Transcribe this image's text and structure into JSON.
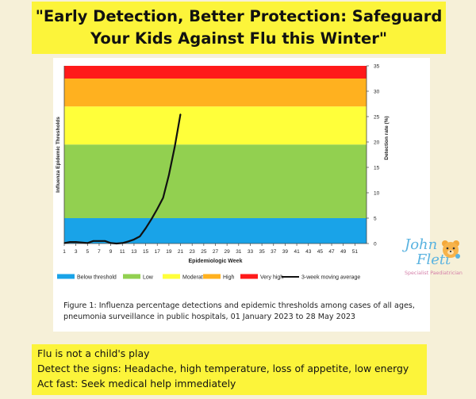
{
  "headline": {
    "line1": "\"Early Detection, Better Protection: Safeguard",
    "line2": "Your Kids Against Flu this Winter\""
  },
  "chart_data": {
    "type": "line",
    "xlabel": "Epidemiologic Week",
    "ylabel_left": "Influenza Epidemic Thresholds",
    "ylabel_right": "Detection rate (%)",
    "xlim": [
      1,
      53
    ],
    "ylim": [
      0,
      35
    ],
    "x_ticks": [
      1,
      3,
      5,
      7,
      9,
      11,
      13,
      15,
      17,
      19,
      21,
      23,
      25,
      27,
      29,
      31,
      33,
      35,
      37,
      39,
      41,
      43,
      45,
      47,
      49,
      51
    ],
    "y_ticks": [
      0,
      5,
      10,
      15,
      20,
      25,
      30,
      35
    ],
    "threshold_bands": [
      {
        "name": "Below threshold",
        "from": 0,
        "to": 5,
        "color": "#19a3e8"
      },
      {
        "name": "Low",
        "from": 5,
        "to": 19.5,
        "color": "#92d050"
      },
      {
        "name": "Moderate",
        "from": 19.5,
        "to": 27,
        "color": "#ffff3a"
      },
      {
        "name": "High",
        "from": 27,
        "to": 32.5,
        "color": "#ffb11f"
      },
      {
        "name": "Very high",
        "from": 32.5,
        "to": 35,
        "color": "#ff1a1a"
      }
    ],
    "series": [
      {
        "name": "3-week moving average",
        "color": "#111111",
        "x": [
          1,
          2,
          3,
          4,
          5,
          6,
          7,
          8,
          9,
          10,
          11,
          12,
          13,
          14,
          15,
          16,
          17,
          18,
          19,
          20,
          21
        ],
        "values": [
          0.1,
          0.3,
          0.3,
          0.2,
          0.1,
          0.5,
          0.5,
          0.5,
          0.1,
          0.0,
          0.1,
          0.4,
          0.8,
          1.4,
          3.0,
          4.8,
          6.8,
          9.0,
          13.5,
          19.0,
          25.5
        ]
      }
    ],
    "legend": [
      "Below threshold",
      "Low",
      "Moderate",
      "High",
      "Very high",
      "3-week moving average"
    ],
    "legend_position": "bottom"
  },
  "caption": {
    "line1": "Figure 1: Influenza percentage detections and epidemic thresholds among cases of all ages,",
    "line2": "pneumonia surveillance in public hospitals, 01 January 2023 to 28 May 2023"
  },
  "logo": {
    "name_first": "John",
    "name_last": "Flett",
    "subtitle": "Specialist Paediatrician",
    "first_color": "#5ab3e0",
    "sub_color": "#d47fa8"
  },
  "advice": {
    "line1": "Flu is not a child's play",
    "line2": "Detect the signs: Headache, high temperature, loss of appetite, low energy",
    "line3": "Act fast: Seek medical help immediately"
  }
}
